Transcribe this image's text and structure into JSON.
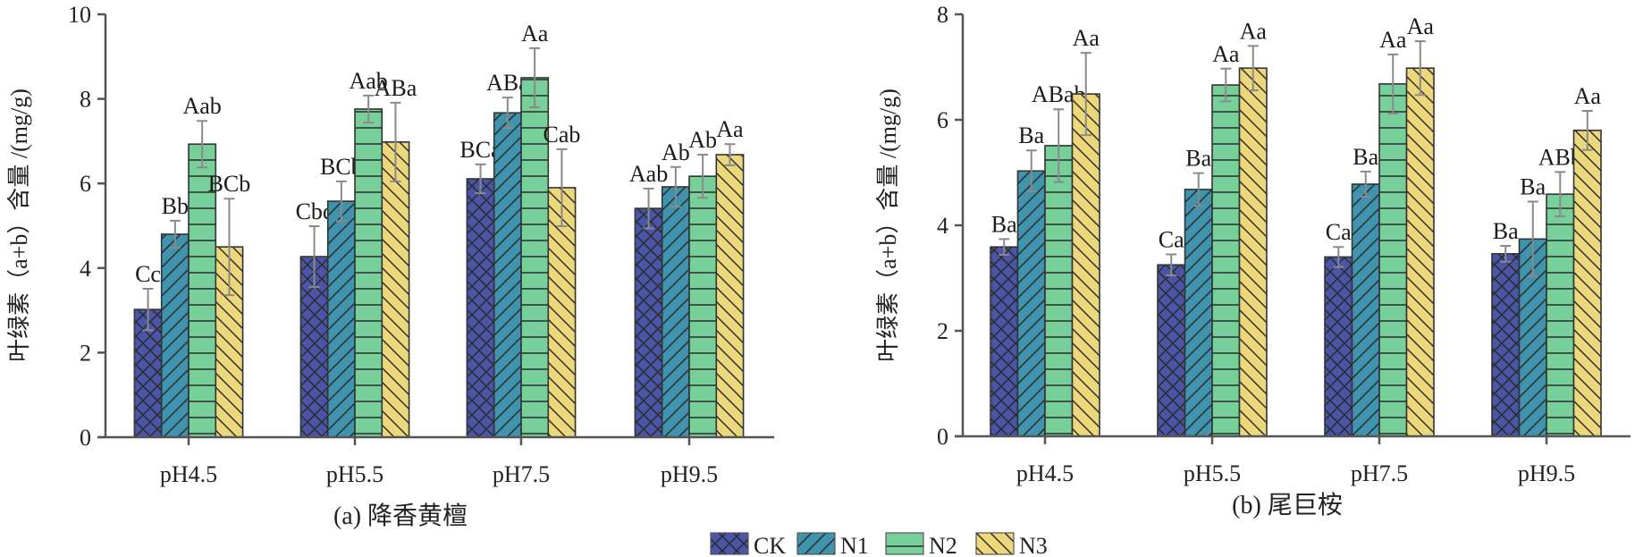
{
  "legend": {
    "items": [
      {
        "key": "CK",
        "label": "CK",
        "color": "#4a55a8",
        "pattern": "crosshatch"
      },
      {
        "key": "N1",
        "label": "N1",
        "color": "#3f93ac",
        "pattern": "forward-diagonal"
      },
      {
        "key": "N2",
        "label": "N2",
        "color": "#77d09a",
        "pattern": "horizontal"
      },
      {
        "key": "N3",
        "label": "N3",
        "color": "#ecd87a",
        "pattern": "back-diagonal"
      }
    ],
    "placement": "bottom-center"
  },
  "chart_data": [
    {
      "type": "bar",
      "title": "(a) 降香黄檀",
      "xlabel": "",
      "ylabel": "叶绿素（a+b）含量 /(mg/g)",
      "ylim": [
        0,
        10
      ],
      "yticks": [
        0,
        2,
        4,
        6,
        8,
        10
      ],
      "grid": false,
      "categories": [
        "pH4.5",
        "pH5.5",
        "pH7.5",
        "pH9.5"
      ],
      "series": [
        {
          "name": "CK",
          "values": [
            3.02,
            4.27,
            6.11,
            5.41
          ],
          "errors": [
            0.49,
            0.72,
            0.34,
            0.47
          ],
          "labels": [
            "Cc",
            "Cbc",
            "BCa",
            "Aab"
          ]
        },
        {
          "name": "N1",
          "values": [
            4.8,
            5.58,
            7.67,
            5.92
          ],
          "errors": [
            0.32,
            0.47,
            0.36,
            0.47
          ],
          "labels": [
            "Bb",
            "BCb",
            "ABa",
            "Ab"
          ]
        },
        {
          "name": "N2",
          "values": [
            6.93,
            7.76,
            8.5,
            6.17
          ],
          "errors": [
            0.55,
            0.32,
            0.7,
            0.51
          ],
          "labels": [
            "Aab",
            "Aab",
            "Aa",
            "Ab"
          ]
        },
        {
          "name": "N3",
          "values": [
            4.5,
            6.98,
            5.9,
            6.68
          ],
          "errors": [
            1.14,
            0.93,
            0.91,
            0.25
          ],
          "labels": [
            "BCb",
            "ABa",
            "Cab",
            "Aa"
          ]
        }
      ]
    },
    {
      "type": "bar",
      "title": "(b) 尾巨桉",
      "xlabel": "",
      "ylabel": "叶绿素（a+b）含量 /(mg/g)",
      "ylim": [
        0,
        8
      ],
      "yticks": [
        0,
        2,
        4,
        6,
        8
      ],
      "grid": false,
      "categories": [
        "pH4.5",
        "pH5.5",
        "pH7.5",
        "pH9.5"
      ],
      "series": [
        {
          "name": "CK",
          "values": [
            3.59,
            3.25,
            3.4,
            3.46
          ],
          "errors": [
            0.15,
            0.2,
            0.19,
            0.15
          ],
          "labels": [
            "Ba",
            "Ca",
            "Ca",
            "Ba"
          ]
        },
        {
          "name": "N1",
          "values": [
            5.03,
            4.68,
            4.78,
            3.74
          ],
          "errors": [
            0.39,
            0.31,
            0.24,
            0.71
          ],
          "labels": [
            "Ba",
            "Ba",
            "Ba",
            "Ba"
          ]
        },
        {
          "name": "N2",
          "values": [
            5.51,
            6.66,
            6.68,
            4.59
          ],
          "errors": [
            0.69,
            0.31,
            0.56,
            0.42
          ],
          "labels": [
            "ABab",
            "Aa",
            "Aa",
            "ABb"
          ]
        },
        {
          "name": "N3",
          "values": [
            6.49,
            6.98,
            6.98,
            5.8
          ],
          "errors": [
            0.78,
            0.42,
            0.51,
            0.37
          ],
          "labels": [
            "Aa",
            "Aa",
            "Aa",
            "Aa"
          ]
        }
      ]
    }
  ]
}
